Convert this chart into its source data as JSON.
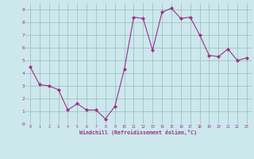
{
  "x": [
    0,
    1,
    2,
    3,
    4,
    5,
    6,
    7,
    8,
    9,
    10,
    11,
    12,
    13,
    14,
    15,
    16,
    17,
    18,
    19,
    20,
    21,
    22,
    23
  ],
  "y": [
    4.5,
    3.1,
    3.0,
    2.7,
    1.1,
    1.6,
    1.1,
    1.1,
    0.4,
    1.4,
    4.3,
    8.4,
    8.3,
    5.8,
    8.8,
    9.1,
    8.3,
    8.4,
    7.0,
    5.4,
    5.3,
    5.9,
    5.0,
    5.2
  ],
  "line_color": "#9b308a",
  "marker": "D",
  "marker_size": 2.0,
  "background_color": "#cce8ec",
  "grid_color": "#99bbbb",
  "xlabel": "Windchill (Refroidissement éolien,°C)",
  "xlabel_color": "#9b308a",
  "tick_color": "#9b308a",
  "xlim": [
    -0.5,
    23.5
  ],
  "ylim": [
    0,
    9.5
  ],
  "yticks": [
    0,
    1,
    2,
    3,
    4,
    5,
    6,
    7,
    8,
    9
  ],
  "xticks": [
    0,
    1,
    2,
    3,
    4,
    5,
    6,
    7,
    8,
    9,
    10,
    11,
    12,
    13,
    14,
    15,
    16,
    17,
    18,
    19,
    20,
    21,
    22,
    23
  ],
  "figsize": [
    3.2,
    2.0
  ],
  "dpi": 100
}
